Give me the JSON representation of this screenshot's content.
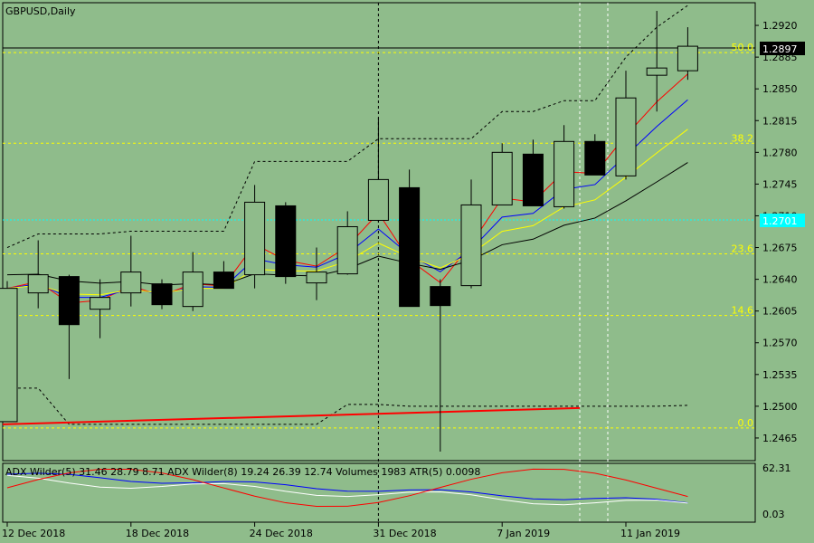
{
  "chart_data": {
    "type": "candlestick",
    "title": "GBPUSD,Daily",
    "indicator_title": "ADX Wilder(5) 31.46 28.79 8.71 ADX Wilder(8) 19.24 26.39 12.74 Volumes 1983 ATR(5) 0.0098",
    "y_ticks": [
      "1.2920",
      "1.2885",
      "1.2850",
      "1.2815",
      "1.2780",
      "1.2745",
      "1.2710",
      "1.2675",
      "1.2640",
      "1.2605",
      "1.2570",
      "1.2535",
      "1.2500",
      "1.2465"
    ],
    "y_range": [
      1.244,
      1.2945
    ],
    "current_price": "1.2897",
    "cyan_level_value": "1.2701",
    "indicator_ticks": [
      "62.31",
      "0.03"
    ],
    "x_labels": [
      {
        "label": "12 Dec 2018",
        "i": 0
      },
      {
        "label": "18 Dec 2018",
        "i": 4
      },
      {
        "label": "24 Dec 2018",
        "i": 8
      },
      {
        "label": "31 Dec 2018",
        "i": 12
      },
      {
        "label": "7 Jan 2019",
        "i": 16
      },
      {
        "label": "11 Jan 2019",
        "i": 20
      }
    ],
    "candles": [
      {
        "o": 1.2483,
        "h": 1.2638,
        "l": 1.2483,
        "c": 1.263
      },
      {
        "o": 1.2625,
        "h": 1.2683,
        "l": 1.2608,
        "c": 1.2645
      },
      {
        "o": 1.2643,
        "h": 1.2645,
        "l": 1.253,
        "c": 1.259
      },
      {
        "o": 1.2607,
        "h": 1.264,
        "l": 1.2575,
        "c": 1.262
      },
      {
        "o": 1.2625,
        "h": 1.2688,
        "l": 1.261,
        "c": 1.2648
      },
      {
        "o": 1.2635,
        "h": 1.264,
        "l": 1.2607,
        "c": 1.2612
      },
      {
        "o": 1.261,
        "h": 1.267,
        "l": 1.2605,
        "c": 1.2648
      },
      {
        "o": 1.2648,
        "h": 1.266,
        "l": 1.263,
        "c": 1.263
      },
      {
        "o": 1.2645,
        "h": 1.2744,
        "l": 1.263,
        "c": 1.2725
      },
      {
        "o": 1.2721,
        "h": 1.2725,
        "l": 1.2635,
        "c": 1.2643
      },
      {
        "o": 1.2636,
        "h": 1.2675,
        "l": 1.2617,
        "c": 1.2648
      },
      {
        "o": 1.2646,
        "h": 1.2715,
        "l": 1.2645,
        "c": 1.2698
      },
      {
        "o": 1.2705,
        "h": 1.2818,
        "l": 1.2703,
        "c": 1.275
      },
      {
        "o": 1.2741,
        "h": 1.2761,
        "l": 1.261,
        "c": 1.261
      },
      {
        "o": 1.2632,
        "h": 1.264,
        "l": 1.245,
        "c": 1.2611
      },
      {
        "o": 1.2633,
        "h": 1.275,
        "l": 1.263,
        "c": 1.2722
      },
      {
        "o": 1.2722,
        "h": 1.279,
        "l": 1.2722,
        "c": 1.278
      },
      {
        "o": 1.2778,
        "h": 1.2794,
        "l": 1.2721,
        "c": 1.2721
      },
      {
        "o": 1.272,
        "h": 1.281,
        "l": 1.2718,
        "c": 1.2792
      },
      {
        "o": 1.2792,
        "h": 1.28,
        "l": 1.2755,
        "c": 1.2755
      },
      {
        "o": 1.2754,
        "h": 1.287,
        "l": 1.275,
        "c": 1.284
      },
      {
        "o": 1.2865,
        "h": 1.2936,
        "l": 1.2825,
        "c": 1.2873
      },
      {
        "o": 1.287,
        "h": 1.2918,
        "l": 1.286,
        "c": 1.2897
      }
    ],
    "fib_levels": [
      {
        "label": "50.0",
        "value": 1.289
      },
      {
        "label": "38.2",
        "value": 1.279
      },
      {
        "label": "23.6",
        "value": 1.2668
      },
      {
        "label": "14.6",
        "value": 1.26
      },
      {
        "label": "0.0",
        "value": 1.2476
      }
    ],
    "colors": {
      "background": "#8fbc8b",
      "bull": "#8fbc8b",
      "bear": "#000000",
      "fib": "#ffff00",
      "cyan": "#00ffff",
      "ma_red": "#ff0000",
      "ma_blue": "#0000ff",
      "ma_yellow": "#ffff00",
      "ma_black": "#000000",
      "white": "#ffffff"
    }
  }
}
